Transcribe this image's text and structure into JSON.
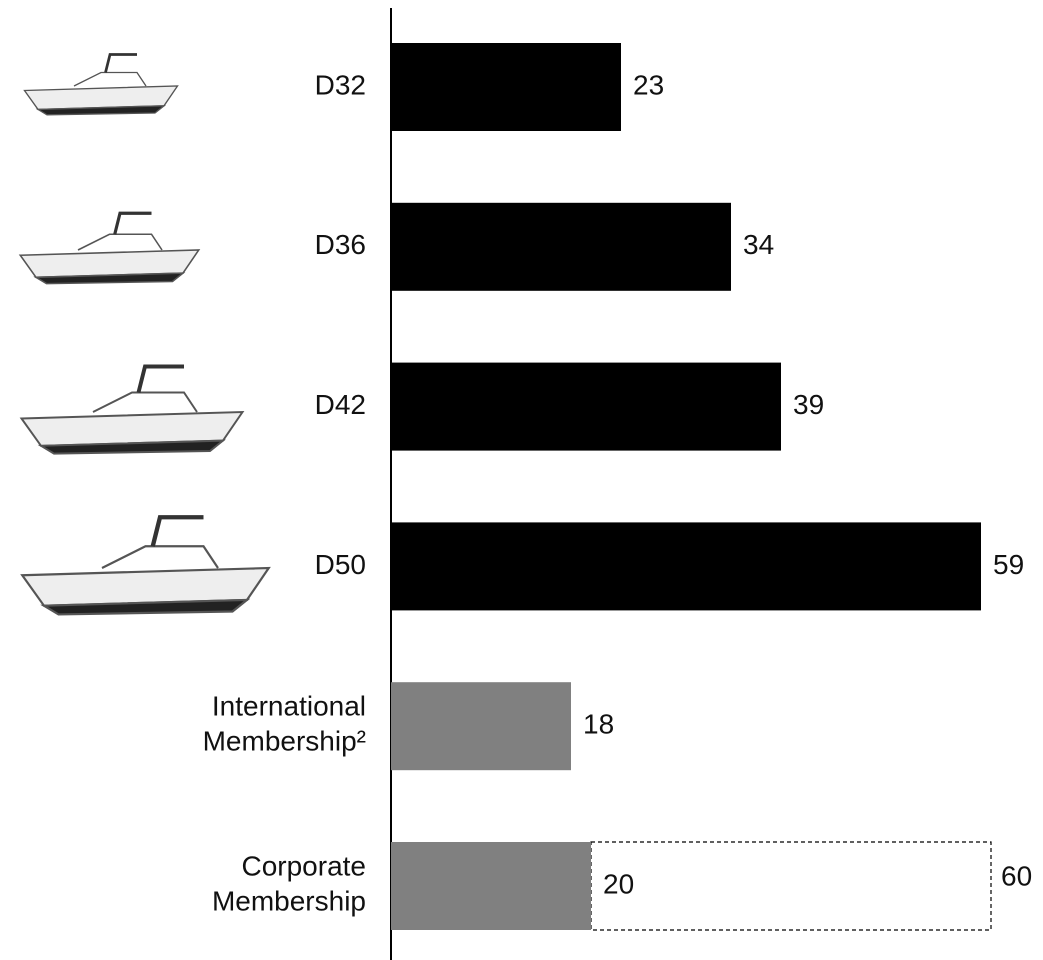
{
  "chart_data": {
    "type": "bar",
    "orientation": "horizontal",
    "categories": [
      "D32",
      "D36",
      "D42",
      "D50",
      "International Membership²",
      "Corporate Membership"
    ],
    "values": [
      23,
      34,
      39,
      59,
      18,
      20
    ],
    "colors": [
      "#000000",
      "#000000",
      "#000000",
      "#000000",
      "#808080",
      "#808080"
    ],
    "targets": [
      null,
      null,
      null,
      null,
      null,
      60
    ],
    "xlim": [
      0,
      65
    ],
    "grid": false
  }
}
